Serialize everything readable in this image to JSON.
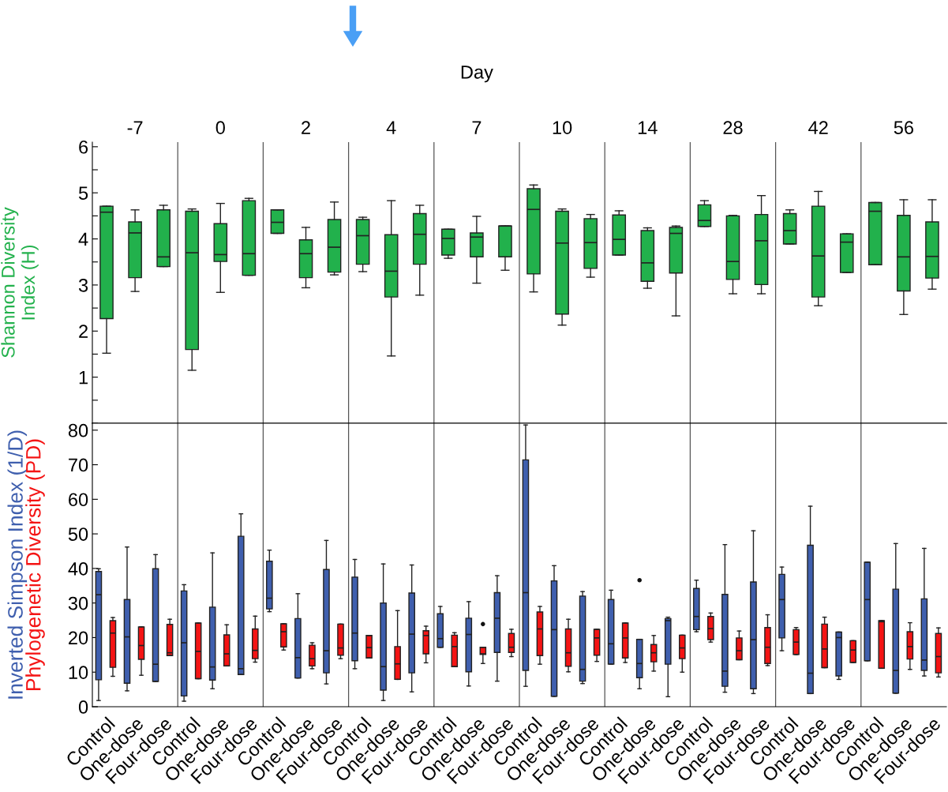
{
  "chart_data": [
    {
      "type": "box",
      "title": "Day",
      "annotations": [
        "-7",
        "0",
        "2",
        "4",
        "7",
        "10",
        "14",
        "28",
        "42",
        "56"
      ],
      "categories": [
        null,
        null,
        null,
        null,
        null,
        null,
        null,
        null,
        null,
        null,
        null,
        null,
        null,
        null,
        null,
        null,
        null,
        null,
        null,
        null,
        null,
        null,
        null,
        null,
        null,
        null,
        null,
        null,
        null,
        null
      ],
      "ylim": [
        0,
        6.1
      ],
      "yticks": [
        {
          "value": 0,
          "label": null
        },
        {
          "value": 0.5,
          "label": null
        },
        1,
        {
          "value": 1.5,
          "label": null
        },
        2,
        {
          "value": 2.5,
          "label": null
        },
        3,
        {
          "value": 3.5,
          "label": null
        },
        4,
        {
          "value": 4.5,
          "label": null
        },
        5,
        {
          "value": 5.5,
          "label": null
        },
        6
      ],
      "tick_labels": "y",
      "grid": false,
      "legend": false,
      "series": [
        {
          "name": "Shannon Diversity Index (H)",
          "color": "#22b14c",
          "boxes": [
            {
              "low": 1.52,
              "q1": 2.27,
              "median": 4.58,
              "q3": 4.71,
              "high": 4.71
            },
            {
              "low": 2.86,
              "q1": 3.16,
              "median": 4.13,
              "q3": 4.37,
              "high": 4.63
            },
            {
              "low": 3.4,
              "q1": 3.4,
              "median": 3.61,
              "q3": 4.63,
              "high": 4.73
            },
            {
              "low": 1.15,
              "q1": 1.6,
              "median": 3.7,
              "q3": 4.6,
              "high": 4.65
            },
            {
              "low": 2.84,
              "q1": 3.51,
              "median": 3.66,
              "q3": 4.33,
              "high": 4.77
            },
            {
              "low": 3.21,
              "q1": 3.21,
              "median": 3.68,
              "q3": 4.83,
              "high": 4.88
            },
            {
              "low": 4.12,
              "q1": 4.12,
              "median": 4.36,
              "q3": 4.63,
              "high": 4.63
            },
            {
              "low": 2.94,
              "q1": 3.16,
              "median": 3.68,
              "q3": 3.98,
              "high": 4.25
            },
            {
              "low": 3.22,
              "q1": 3.28,
              "median": 3.82,
              "q3": 4.42,
              "high": 4.8
            },
            {
              "low": 3.29,
              "q1": 3.45,
              "median": 4.07,
              "q3": 4.42,
              "high": 4.47
            },
            {
              "low": 1.46,
              "q1": 2.74,
              "median": 3.3,
              "q3": 4.09,
              "high": 4.83
            },
            {
              "low": 2.78,
              "q1": 3.45,
              "median": 4.1,
              "q3": 4.55,
              "high": 4.73
            },
            {
              "low": 3.58,
              "q1": 3.65,
              "median": 4.01,
              "q3": 4.21,
              "high": 4.21
            },
            {
              "low": 3.04,
              "q1": 3.61,
              "median": 4.04,
              "q3": 4.13,
              "high": 4.49
            },
            {
              "low": 3.32,
              "q1": 3.61,
              "median": 4.28,
              "q3": 4.28,
              "high": 4.28
            },
            {
              "low": 2.85,
              "q1": 3.24,
              "median": 4.64,
              "q3": 5.09,
              "high": 5.17
            },
            {
              "low": 2.13,
              "q1": 2.37,
              "median": 3.91,
              "q3": 4.6,
              "high": 4.65
            },
            {
              "low": 3.17,
              "q1": 3.36,
              "median": 3.92,
              "q3": 4.44,
              "high": 4.53
            },
            {
              "low": 3.65,
              "q1": 3.65,
              "median": 3.99,
              "q3": 4.52,
              "high": 4.61
            },
            {
              "low": 2.93,
              "q1": 3.08,
              "median": 3.48,
              "q3": 4.18,
              "high": 4.24
            },
            {
              "low": 2.33,
              "q1": 3.26,
              "median": 4.12,
              "q3": 4.25,
              "high": 4.28
            },
            {
              "low": 4.27,
              "q1": 4.27,
              "median": 4.4,
              "q3": 4.74,
              "high": 4.83
            },
            {
              "low": 2.81,
              "q1": 3.12,
              "median": 3.51,
              "q3": 4.5,
              "high": 4.51
            },
            {
              "low": 2.81,
              "q1": 3.01,
              "median": 3.96,
              "q3": 4.53,
              "high": 4.94
            },
            {
              "low": 3.89,
              "q1": 3.89,
              "median": 4.18,
              "q3": 4.55,
              "high": 4.63
            },
            {
              "low": 2.55,
              "q1": 2.74,
              "median": 3.63,
              "q3": 4.71,
              "high": 5.03
            },
            {
              "low": 3.27,
              "q1": 3.27,
              "median": 3.93,
              "q3": 4.11,
              "high": 4.11
            },
            {
              "low": 3.44,
              "q1": 3.44,
              "median": 4.6,
              "q3": 4.79,
              "high": 4.79
            },
            {
              "low": 2.36,
              "q1": 2.87,
              "median": 3.61,
              "q3": 4.51,
              "high": 4.85
            },
            {
              "low": 2.91,
              "q1": 3.15,
              "median": 3.62,
              "q3": 4.37,
              "high": 4.85
            }
          ]
        }
      ]
    },
    {
      "type": "box",
      "categories": [
        "Control",
        "One-dose",
        "Four-dose",
        "Control",
        "One-dose",
        "Four-dose",
        "Control",
        "One-dose",
        "Four-dose",
        "Control",
        "One-dose",
        "Four-dose",
        "Control",
        "One-dose",
        "Four-dose",
        "Control",
        "One-dose",
        "Four-dose",
        "Control",
        "One-dose",
        "Four-dose",
        "Control",
        "One-dose",
        "Four-dose",
        "Control",
        "One-dose",
        "Four-dose",
        "Control",
        "One-dose",
        "Four-dose"
      ],
      "ylim": [
        0,
        82
      ],
      "yticks": [
        0,
        10,
        20,
        30,
        40,
        50,
        60,
        70,
        80
      ],
      "grid": false,
      "legend": false,
      "series": [
        {
          "name": "Inverted Simpson Index (1/D)",
          "color": "#3f5fae",
          "boxes": [
            {
              "low": 1.8,
              "q1": 7.8,
              "median": 32.4,
              "q3": 39.1,
              "high": 39.9
            },
            {
              "low": 4.6,
              "q1": 6.8,
              "median": 20.2,
              "q3": 31.0,
              "high": 46.2
            },
            {
              "low": 7.3,
              "q1": 7.3,
              "median": 12.3,
              "q3": 39.9,
              "high": 44.0
            },
            {
              "low": 1.6,
              "q1": 3.1,
              "median": 18.5,
              "q3": 33.5,
              "high": 35.3
            },
            {
              "low": 5.2,
              "q1": 7.7,
              "median": 11.5,
              "q3": 28.8,
              "high": 44.5
            },
            {
              "low": 9.3,
              "q1": 9.3,
              "median": 11.0,
              "q3": 49.3,
              "high": 55.8
            },
            {
              "low": 27.5,
              "q1": 28.3,
              "median": 31.4,
              "q3": 42.1,
              "high": 45.3
            },
            {
              "low": 8.3,
              "q1": 8.3,
              "median": 14.2,
              "q3": 25.5,
              "high": 32.7
            },
            {
              "low": 6.6,
              "q1": 9.8,
              "median": 16.2,
              "q3": 39.7,
              "high": 48.1
            },
            {
              "low": 11.0,
              "q1": 13.3,
              "median": 21.3,
              "q3": 37.5,
              "high": 42.6
            },
            {
              "low": 1.8,
              "q1": 4.8,
              "median": 11.6,
              "q3": 30.0,
              "high": 41.3
            },
            {
              "low": 4.3,
              "q1": 9.8,
              "median": 21.0,
              "q3": 32.9,
              "high": 41.0
            },
            {
              "low": 17.2,
              "q1": 17.2,
              "median": 19.7,
              "q3": 26.9,
              "high": 29.0
            },
            {
              "low": 6.0,
              "q1": 10.1,
              "median": 20.9,
              "q3": 25.6,
              "high": 30.4
            },
            {
              "low": 7.4,
              "q1": 15.7,
              "median": 25.6,
              "q3": 33.0,
              "high": 37.9
            },
            {
              "low": 5.9,
              "q1": 10.5,
              "median": 33.0,
              "q3": 71.4,
              "high": 81.5
            },
            {
              "low": 3.0,
              "q1": 3.0,
              "median": 22.3,
              "q3": 36.4,
              "high": 40.8
            },
            {
              "low": 6.7,
              "q1": 7.4,
              "median": 10.8,
              "q3": 32.0,
              "high": 33.3
            },
            {
              "low": 12.3,
              "q1": 12.3,
              "median": 18.2,
              "q3": 31.0,
              "high": 33.7
            },
            {
              "low": 5.2,
              "q1": 8.4,
              "median": 12.5,
              "q3": 19.5,
              "high": 19.5,
              "outliers": [
                36.6
              ]
            },
            {
              "low": 2.9,
              "q1": 12.3,
              "median": 24.9,
              "q3": 25.5,
              "high": 25.9
            },
            {
              "low": 21.7,
              "q1": 22.3,
              "median": 26.1,
              "q3": 34.2,
              "high": 36.6
            },
            {
              "low": 4.2,
              "q1": 5.9,
              "median": 10.3,
              "q3": 32.5,
              "high": 46.9
            },
            {
              "low": 3.8,
              "q1": 5.2,
              "median": 19.4,
              "q3": 36.1,
              "high": 50.9
            },
            {
              "low": 16.2,
              "q1": 19.9,
              "median": 31.0,
              "q3": 38.3,
              "high": 40.4
            },
            {
              "low": 3.8,
              "q1": 3.8,
              "median": 9.7,
              "q3": 46.7,
              "high": 58.0
            },
            {
              "low": 7.9,
              "q1": 8.9,
              "median": 20.0,
              "q3": 21.6,
              "high": 21.6
            },
            {
              "low": 13.3,
              "q1": 13.3,
              "median": 31.0,
              "q3": 41.8,
              "high": 41.8
            },
            {
              "low": 3.9,
              "q1": 3.9,
              "median": 10.5,
              "q3": 34.0,
              "high": 47.2
            },
            {
              "low": 8.9,
              "q1": 10.5,
              "median": 13.5,
              "q3": 31.2,
              "high": 45.8
            }
          ]
        },
        {
          "name": "Phylogenetic Diversity (PD)",
          "color": "#f41414",
          "boxes": [
            {
              "low": 8.8,
              "q1": 11.4,
              "median": 21.3,
              "q3": 24.9,
              "high": 25.8
            },
            {
              "low": 9.1,
              "q1": 13.7,
              "median": 17.7,
              "q3": 23.1,
              "high": 23.1
            },
            {
              "low": 14.8,
              "q1": 14.8,
              "median": 15.6,
              "q3": 23.8,
              "high": 25.3
            },
            {
              "low": 8.1,
              "q1": 8.1,
              "median": 16.0,
              "q3": 24.2,
              "high": 24.2
            },
            {
              "low": 11.8,
              "q1": 11.8,
              "median": 15.3,
              "q3": 20.8,
              "high": 23.7
            },
            {
              "low": 12.9,
              "q1": 13.9,
              "median": 16.3,
              "q3": 22.5,
              "high": 26.2
            },
            {
              "low": 16.4,
              "q1": 17.3,
              "median": 21.7,
              "q3": 24.0,
              "high": 24.0
            },
            {
              "low": 11.0,
              "q1": 11.8,
              "median": 13.9,
              "q3": 17.8,
              "high": 18.5
            },
            {
              "low": 13.9,
              "q1": 14.9,
              "median": 17.0,
              "q3": 23.9,
              "high": 23.9
            },
            {
              "low": 14.1,
              "q1": 14.1,
              "median": 17.1,
              "q3": 20.6,
              "high": 20.6
            },
            {
              "low": 7.9,
              "q1": 7.9,
              "median": 12.4,
              "q3": 17.4,
              "high": 27.8
            },
            {
              "low": 12.7,
              "q1": 15.3,
              "median": 20.6,
              "q3": 22.0,
              "high": 23.3
            },
            {
              "low": 11.6,
              "q1": 11.6,
              "median": 17.4,
              "q3": 20.7,
              "high": 21.4
            },
            {
              "low": 12.5,
              "q1": 15.1,
              "median": 15.3,
              "q3": 17.2,
              "high": 17.2,
              "outliers": [
                23.9
              ]
            },
            {
              "low": 14.5,
              "q1": 15.7,
              "median": 17.2,
              "q3": 21.2,
              "high": 22.4
            },
            {
              "low": 12.3,
              "q1": 14.8,
              "median": 22.5,
              "q3": 27.4,
              "high": 29.0
            },
            {
              "low": 10.1,
              "q1": 11.7,
              "median": 15.6,
              "q3": 22.5,
              "high": 25.3
            },
            {
              "low": 13.1,
              "q1": 14.9,
              "median": 19.9,
              "q3": 22.4,
              "high": 22.4
            },
            {
              "low": 12.8,
              "q1": 14.1,
              "median": 19.9,
              "q3": 24.2,
              "high": 24.2
            },
            {
              "low": 10.3,
              "q1": 13.0,
              "median": 15.6,
              "q3": 18.0,
              "high": 20.6
            },
            {
              "low": 10.0,
              "q1": 13.9,
              "median": 17.0,
              "q3": 20.7,
              "high": 20.7
            },
            {
              "low": 18.7,
              "q1": 19.4,
              "median": 22.6,
              "q3": 26.1,
              "high": 27.1
            },
            {
              "low": 13.6,
              "q1": 13.6,
              "median": 16.2,
              "q3": 19.9,
              "high": 21.9
            },
            {
              "low": 11.9,
              "q1": 12.5,
              "median": 17.2,
              "q3": 22.9,
              "high": 26.6
            },
            {
              "low": 15.1,
              "q1": 15.1,
              "median": 18.7,
              "q3": 22.3,
              "high": 22.9
            },
            {
              "low": 11.3,
              "q1": 11.3,
              "median": 16.7,
              "q3": 23.9,
              "high": 25.9
            },
            {
              "low": 12.8,
              "q1": 12.8,
              "median": 16.4,
              "q3": 19.1,
              "high": 19.1
            },
            {
              "low": 11.1,
              "q1": 11.1,
              "median": 24.6,
              "q3": 24.9,
              "high": 24.9
            },
            {
              "low": 10.8,
              "q1": 13.8,
              "median": 17.4,
              "q3": 21.7,
              "high": 24.3
            },
            {
              "low": 8.6,
              "q1": 9.8,
              "median": 14.5,
              "q3": 21.2,
              "high": 22.8
            }
          ]
        }
      ]
    }
  ]
}
